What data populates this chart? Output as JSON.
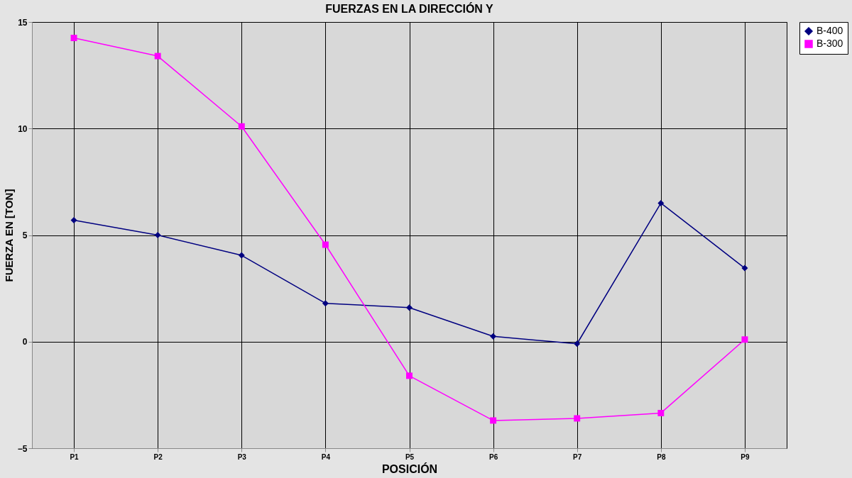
{
  "chart_data": {
    "type": "line",
    "title": "FUERZAS  EN LA DIRECCIÓN  Y",
    "xlabel": "POSICIÓN",
    "ylabel": "FUERZA  EN  [TON]",
    "categories": [
      "P1",
      "P2",
      "P3",
      "P4",
      "P5",
      "P6",
      "P7",
      "P8",
      "P9"
    ],
    "series": [
      {
        "name": "B-400",
        "color": "#000080",
        "marker": "diamond",
        "values": [
          5.7,
          5.0,
          4.05,
          1.8,
          1.6,
          0.25,
          -0.1,
          6.5,
          3.45
        ]
      },
      {
        "name": "B-300",
        "color": "#ff00ff",
        "marker": "square",
        "values": [
          14.25,
          13.4,
          10.1,
          4.55,
          -1.6,
          -3.7,
          -3.6,
          -3.35,
          0.1
        ]
      }
    ],
    "ylim": [
      -5,
      15
    ],
    "yticks": [
      -5,
      0,
      5,
      10,
      15
    ],
    "grid": true,
    "legend": "right"
  }
}
